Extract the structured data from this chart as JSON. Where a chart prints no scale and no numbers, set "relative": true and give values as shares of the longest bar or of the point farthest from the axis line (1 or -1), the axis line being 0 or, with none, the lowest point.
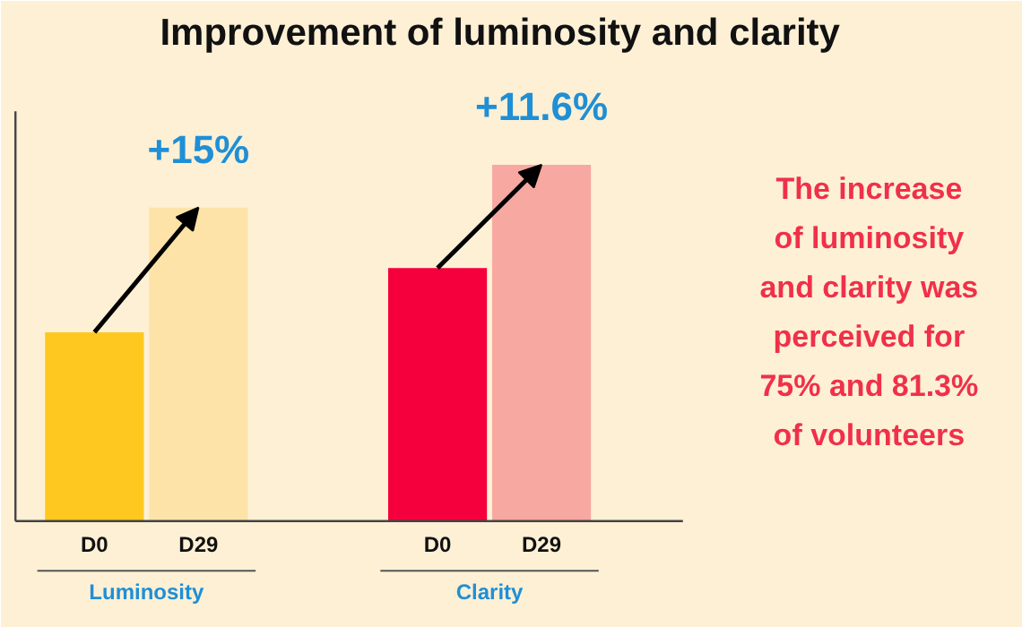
{
  "chart_data": {
    "type": "bar",
    "title": "Improvement of luminosity and clarity",
    "relative": true,
    "categories": [
      "D0",
      "D29",
      "D0",
      "D29"
    ],
    "values": [
      0.53,
      0.88,
      0.71,
      1.0
    ],
    "colors": [
      "#ffc820",
      "#fde3a8",
      "#f5003c",
      "#f7a8a0"
    ],
    "grid": false,
    "annotations": [
      "+15%",
      "+11.6%",
      "Luminosity",
      "Clarity",
      "The increase\nof luminosity\nand clarity was\nperceived for\n75% and 81.3%\nof volunteers"
    ]
  }
}
